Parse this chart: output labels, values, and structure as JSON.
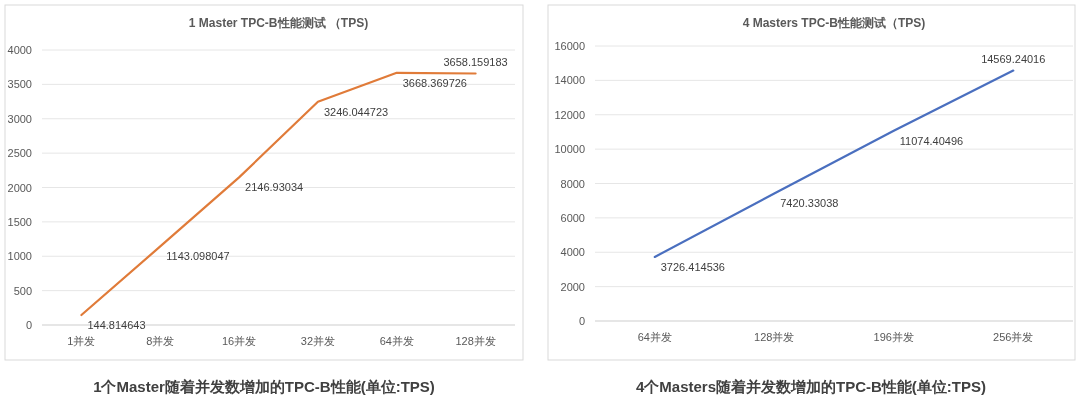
{
  "chart_data": [
    {
      "type": "line",
      "title": "1 Master TPC-B性能测试 （TPS)",
      "categories": [
        "1并发",
        "8并发",
        "16并发",
        "32并发",
        "64并发",
        "128并发"
      ],
      "series": [
        {
          "color": "#e07b39",
          "values": [
            144.814643,
            1143.098047,
            2146.93034,
            3246.044723,
            3668.369726,
            3658.159183
          ]
        }
      ],
      "ylim": [
        0,
        4000
      ],
      "yticks": [
        0,
        500,
        1000,
        1500,
        2000,
        2500,
        3000,
        3500,
        4000
      ],
      "grid": "y",
      "data_labels": true,
      "annotations": [
        "1个Master随着并发数增加的TPC-B性能(单位:TPS)"
      ]
    },
    {
      "type": "line",
      "title": "4 Masters TPC-B性能测试（TPS)",
      "categories": [
        "64并发",
        "128并发",
        "196并发",
        "256并发"
      ],
      "series": [
        {
          "color": "#4a6fbf",
          "values": [
            3726.414536,
            7420.33038,
            11074.40496,
            14569.24016
          ]
        }
      ],
      "ylim": [
        0,
        16000
      ],
      "yticks": [
        0,
        2000,
        4000,
        6000,
        8000,
        10000,
        12000,
        14000,
        16000
      ],
      "grid": "y",
      "data_labels": true,
      "annotations": [
        "4个Masters随着并发数增加的TPC-B性能(单位:TPS)"
      ]
    }
  ]
}
